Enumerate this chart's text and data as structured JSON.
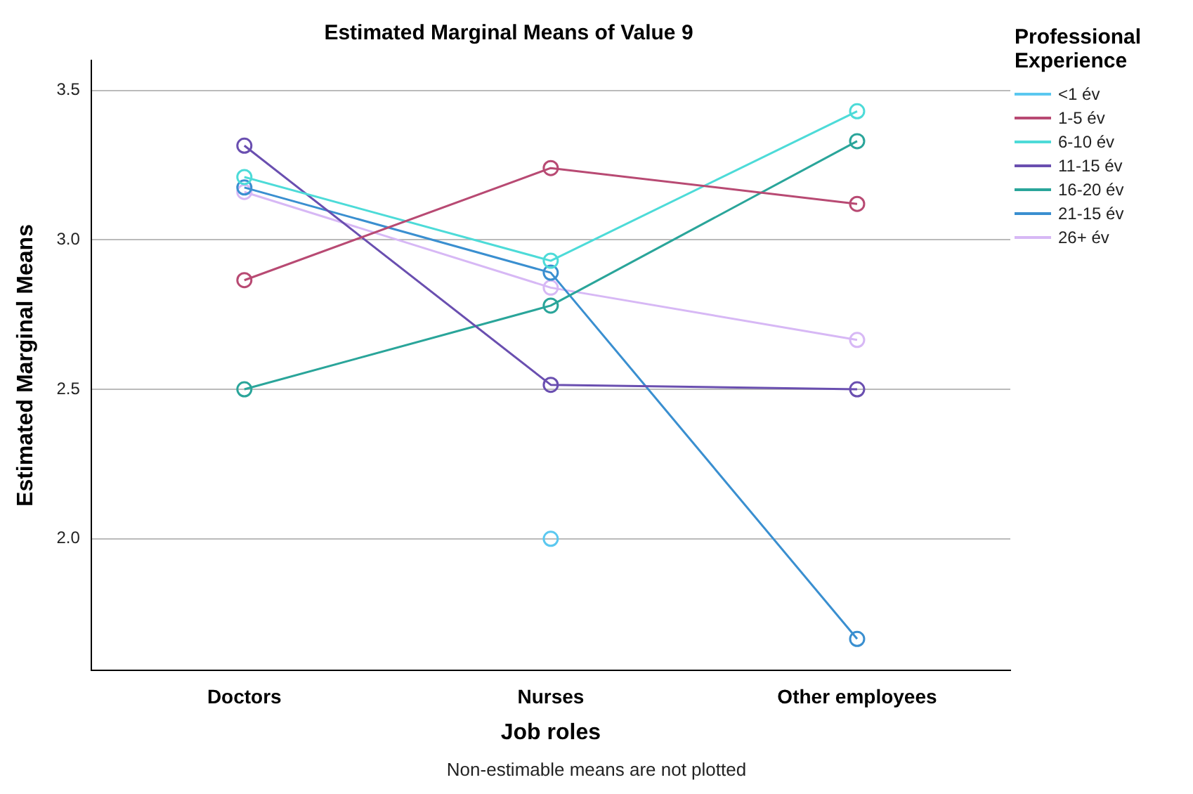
{
  "chart_data": {
    "type": "line",
    "title": "Estimated Marginal Means of Value 9",
    "xlabel": "Job roles",
    "ylabel": "Estimated Marginal Means",
    "legend_title": "Professional Experience",
    "categories": [
      "Doctors",
      "Nurses",
      "Other employees"
    ],
    "series": [
      {
        "name": "<1 év",
        "color": "#5bc8f0",
        "values": [
          null,
          2.0,
          null
        ]
      },
      {
        "name": "1-5 év",
        "color": "#b84a73",
        "values": [
          2.865,
          3.24,
          3.12
        ]
      },
      {
        "name": "6-10 év",
        "color": "#4ddbd8",
        "values": [
          3.21,
          2.93,
          3.43
        ]
      },
      {
        "name": "11-15 év",
        "color": "#6a4fb0",
        "values": [
          3.315,
          2.515,
          2.5
        ]
      },
      {
        "name": "16-20 év",
        "color": "#2aa59a",
        "values": [
          2.5,
          2.78,
          3.33
        ]
      },
      {
        "name": "21-15 év",
        "color": "#3a8fd0",
        "values": [
          3.175,
          2.89,
          1.665
        ]
      },
      {
        "name": "26+ év",
        "color": "#d7b8f5",
        "values": [
          3.16,
          2.84,
          2.665
        ]
      }
    ],
    "ylim": [
      1.56,
      3.6
    ],
    "yticks": [
      {
        "value": 2,
        "label": "2.0"
      },
      2.5,
      {
        "value": 3,
        "label": "3.0"
      },
      3.5
    ],
    "grid": "y",
    "legend": "top right",
    "marker": "circle",
    "line_style": "solid",
    "annotations": [
      "Non-estimable means are not plotted"
    ]
  }
}
